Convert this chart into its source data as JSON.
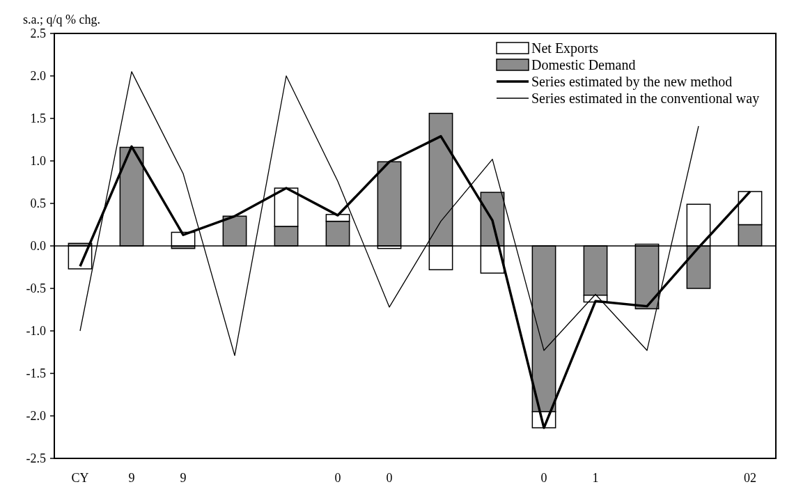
{
  "chart_data": {
    "type": "bar",
    "ylabel": "s.a.; q/q % chg.",
    "stacked": true,
    "categories": [
      "CY",
      "9",
      "9",
      null,
      null,
      "0",
      "0",
      null,
      null,
      "0",
      "1",
      null,
      null,
      "02"
    ],
    "series": [
      {
        "name": "Domestic Demand",
        "color": "#8c8c8c",
        "values": [
          0.03,
          1.16,
          -0.03,
          0.35,
          0.23,
          0.29,
          0.99,
          1.56,
          0.63,
          -1.95,
          -0.58,
          -0.74,
          -0.5,
          0.25
        ]
      },
      {
        "name": "Net Exports",
        "color": "#ffffff",
        "values": [
          -0.27,
          0,
          0.16,
          0,
          0.45,
          0.08,
          -0.03,
          -0.28,
          -0.32,
          -0.19,
          -0.08,
          0.02,
          0.49,
          0.39
        ]
      },
      {
        "name": "Series estimated by the new method",
        "type": "line",
        "color": "#000000",
        "values": [
          -0.24,
          1.17,
          0.13,
          0.35,
          0.68,
          0.36,
          0.99,
          1.29,
          0.3,
          -2.14,
          -0.65,
          -0.71,
          -0.02,
          0.64
        ]
      },
      {
        "name": "Series estimated in the conventional way",
        "type": "line",
        "color": "#000000",
        "values": [
          -1.0,
          2.05,
          0.85,
          -1.29,
          2.0,
          0.76,
          -0.72,
          0.29,
          1.02,
          -1.23,
          -0.57,
          -1.23,
          1.41,
          null
        ]
      }
    ],
    "ylim": [
      -2.5,
      2.5
    ],
    "yticks": [
      {
        "value": -2.5,
        "label": "-2.5"
      },
      {
        "value": -2,
        "label": "-2.0"
      },
      {
        "value": -1.5,
        "label": "-1.5"
      },
      {
        "value": -1,
        "label": "-1.0"
      },
      {
        "value": -0.5,
        "label": "-0.5"
      },
      {
        "value": 0,
        "label": "0.0"
      },
      {
        "value": 0.5,
        "label": "0.5"
      },
      {
        "value": 1,
        "label": "1.0"
      },
      {
        "value": 1.5,
        "label": "1.5"
      },
      {
        "value": 2,
        "label": "2.0"
      },
      {
        "value": 2.5,
        "label": "2.5"
      }
    ],
    "ref_lines": [
      {
        "axis": "y",
        "value": 0
      }
    ],
    "legend": "top right"
  }
}
